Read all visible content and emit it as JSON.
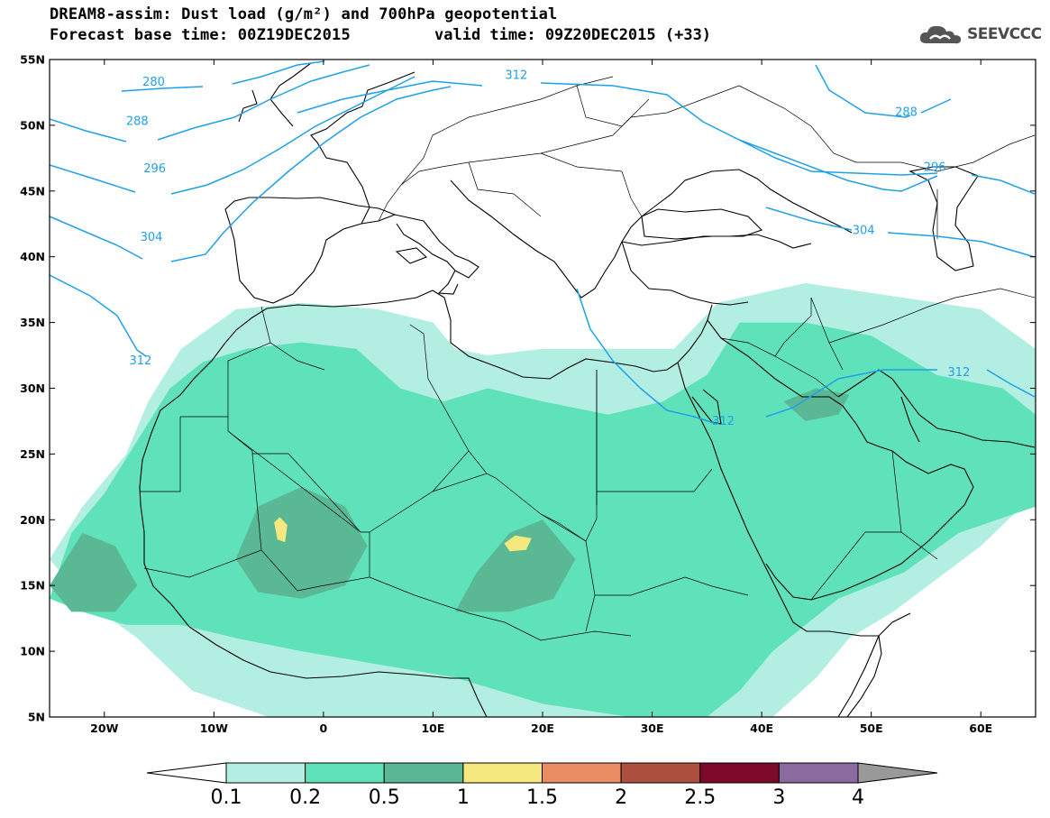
{
  "title": {
    "line1": "DREAM8-assim: Dust load (g/m²) and 700hPa geopotential",
    "line2": "Forecast base time: 00Z19DEC2015",
    "valid": "valid time: 09Z20DEC2015 (+33)"
  },
  "logo": {
    "text": "SEEVCCC",
    "icon": "cloud-icon"
  },
  "axes": {
    "lon_range": [
      -25,
      65
    ],
    "lat_range": [
      5,
      55
    ],
    "x_ticks": [
      "20W",
      "10W",
      "0",
      "10E",
      "20E",
      "30E",
      "40E",
      "50E",
      "60E"
    ],
    "x_tick_values": [
      -20,
      -10,
      0,
      10,
      20,
      30,
      40,
      50,
      60
    ],
    "y_ticks": [
      "5N",
      "10N",
      "15N",
      "20N",
      "25N",
      "30N",
      "35N",
      "40N",
      "45N",
      "50N",
      "55N"
    ],
    "y_tick_values": [
      5,
      10,
      15,
      20,
      25,
      30,
      35,
      40,
      45,
      50,
      55
    ]
  },
  "contours": [
    {
      "label": "280",
      "color": "#1fa0e8"
    },
    {
      "label": "288",
      "color": "#1fa0e8"
    },
    {
      "label": "296",
      "color": "#1fa0e8"
    },
    {
      "label": "304",
      "color": "#1fa0e8"
    },
    {
      "label": "312",
      "color": "#1fa0e8"
    }
  ],
  "contour_labels": [
    {
      "text": "280",
      "lon": -15.5,
      "lat": 53.3
    },
    {
      "text": "288",
      "lon": -17.0,
      "lat": 50.3
    },
    {
      "text": "296",
      "lon": -15.4,
      "lat": 46.7
    },
    {
      "text": "304",
      "lon": -15.7,
      "lat": 41.5
    },
    {
      "text": "312",
      "lon": -16.7,
      "lat": 32.1
    },
    {
      "text": "312",
      "lon": 17.6,
      "lat": 53.8
    },
    {
      "text": "312",
      "lon": 36.5,
      "lat": 27.5
    },
    {
      "text": "312",
      "lon": 58.0,
      "lat": 31.2
    },
    {
      "text": "288",
      "lon": 53.2,
      "lat": 51.0
    },
    {
      "text": "296",
      "lon": 55.8,
      "lat": 46.8
    },
    {
      "text": "304",
      "lon": 49.3,
      "lat": 42.0
    }
  ],
  "legend": {
    "labels": [
      "0.1",
      "0.2",
      "0.5",
      "1",
      "1.5",
      "2",
      "2.5",
      "3",
      "4"
    ],
    "colors": [
      "#ffffff",
      "#b2efe2",
      "#5fe2b9",
      "#5ab895",
      "#f4e87e",
      "#ea8c64",
      "#ad4f3f",
      "#7d0a2b",
      "#8b6a9f",
      "#999999"
    ]
  },
  "dust_regions": [
    {
      "level": 1,
      "color": "#b2efe2",
      "points": [
        [
          -25,
          17
        ],
        [
          -22,
          21
        ],
        [
          -18,
          25
        ],
        [
          -16,
          29
        ],
        [
          -13,
          33
        ],
        [
          -8,
          36
        ],
        [
          -2,
          36.5
        ],
        [
          5,
          36
        ],
        [
          10,
          35
        ],
        [
          12,
          33
        ],
        [
          15,
          32.5
        ],
        [
          20,
          33
        ],
        [
          25,
          33
        ],
        [
          32,
          33
        ],
        [
          36,
          36.5
        ],
        [
          44,
          38
        ],
        [
          52,
          37
        ],
        [
          60,
          36
        ],
        [
          65,
          33
        ],
        [
          65,
          22
        ],
        [
          60,
          18
        ],
        [
          52,
          13
        ],
        [
          48,
          11
        ],
        [
          45,
          8
        ],
        [
          41,
          5
        ],
        [
          25,
          5
        ],
        [
          10,
          5
        ],
        [
          -5,
          5
        ],
        [
          -12,
          7
        ],
        [
          -17,
          11
        ],
        [
          -22,
          14
        ]
      ]
    },
    {
      "level": 2,
      "color": "#5fe2b9",
      "points": [
        [
          -25,
          14
        ],
        [
          -23,
          19
        ],
        [
          -20,
          22
        ],
        [
          -17,
          26
        ],
        [
          -14,
          30
        ],
        [
          -11,
          32
        ],
        [
          -7,
          33
        ],
        [
          -2,
          33.5
        ],
        [
          3,
          33
        ],
        [
          7,
          30
        ],
        [
          11,
          29
        ],
        [
          15,
          30
        ],
        [
          20,
          29
        ],
        [
          26,
          28
        ],
        [
          31,
          29
        ],
        [
          35,
          31
        ],
        [
          38,
          35
        ],
        [
          44,
          35
        ],
        [
          50,
          34
        ],
        [
          56,
          31
        ],
        [
          62,
          30
        ],
        [
          65,
          28
        ],
        [
          65,
          21
        ],
        [
          58,
          19
        ],
        [
          53,
          16
        ],
        [
          47,
          14
        ],
        [
          44,
          12
        ],
        [
          41,
          10
        ],
        [
          38,
          7
        ],
        [
          35,
          5
        ],
        [
          28,
          5
        ],
        [
          20,
          6
        ],
        [
          12,
          8
        ],
        [
          5,
          9
        ],
        [
          -2,
          10
        ],
        [
          -8,
          11
        ],
        [
          -13,
          12
        ],
        [
          -18,
          12
        ],
        [
          -22,
          13
        ]
      ]
    },
    {
      "level": 3,
      "color": "#5ab895",
      "points": [
        [
          -8,
          17
        ],
        [
          -6,
          21
        ],
        [
          -2,
          22.5
        ],
        [
          2,
          21
        ],
        [
          4,
          18
        ],
        [
          2,
          15
        ],
        [
          -2,
          14
        ],
        [
          -6,
          14.5
        ]
      ]
    },
    {
      "level": 3,
      "color": "#5ab895",
      "points": [
        [
          12,
          13
        ],
        [
          14,
          16
        ],
        [
          17,
          19
        ],
        [
          20,
          20
        ],
        [
          23,
          17
        ],
        [
          21,
          14
        ],
        [
          17,
          13
        ]
      ]
    },
    {
      "level": 3,
      "color": "#5ab895",
      "points": [
        [
          -25,
          15
        ],
        [
          -22,
          19
        ],
        [
          -19,
          18
        ],
        [
          -17,
          15
        ],
        [
          -19,
          13
        ],
        [
          -23,
          13
        ]
      ]
    },
    {
      "level": 3,
      "color": "#5ab895",
      "points": [
        [
          42,
          29
        ],
        [
          45,
          30
        ],
        [
          48,
          29.5
        ],
        [
          47,
          28
        ],
        [
          44,
          27.5
        ]
      ]
    },
    {
      "level": 4,
      "color": "#f4e87e",
      "points": [
        [
          -4.5,
          19.8
        ],
        [
          -4,
          20.2
        ],
        [
          -3.3,
          19.6
        ],
        [
          -3.5,
          18.3
        ],
        [
          -4.2,
          18.5
        ]
      ]
    },
    {
      "level": 4,
      "color": "#f4e87e",
      "points": [
        [
          16.5,
          18.2
        ],
        [
          17.5,
          18.8
        ],
        [
          19,
          18.6
        ],
        [
          18.5,
          17.7
        ],
        [
          17,
          17.6
        ]
      ]
    }
  ]
}
